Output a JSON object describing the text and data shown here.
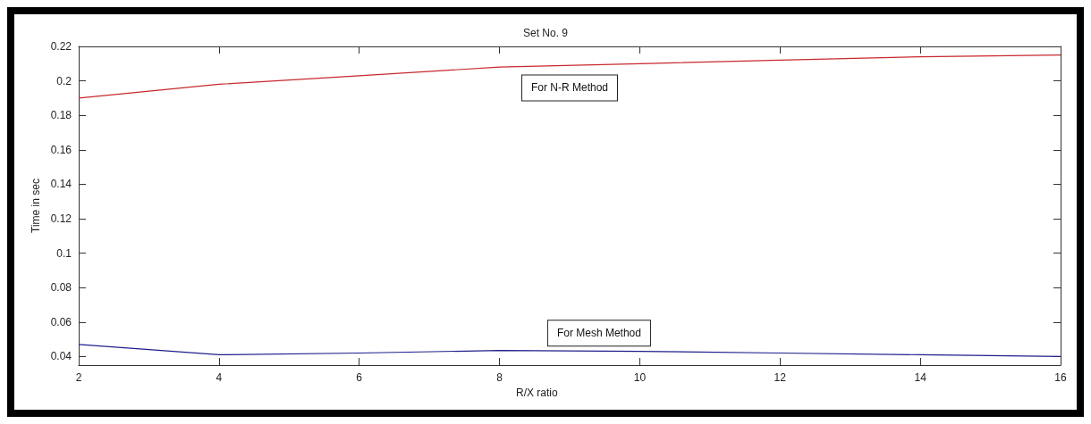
{
  "chart_data": {
    "type": "line",
    "title": "Set No. 9",
    "xlabel": "R/X ratio",
    "ylabel": "Time in sec",
    "annotations": [
      "For N-R Method",
      "For Mesh Method"
    ],
    "x": [
      2,
      4,
      6,
      8,
      10,
      12,
      14,
      16
    ],
    "series": [
      {
        "color": "#c8282d",
        "values": [
          0.19,
          0.198,
          0.203,
          0.208,
          0.21,
          0.212,
          0.214,
          0.215
        ]
      },
      {
        "color": "#1e1e8c",
        "values": [
          0.047,
          0.041,
          0.042,
          0.0435,
          0.043,
          0.042,
          0.041,
          0.04
        ]
      }
    ],
    "xlim": [
      2,
      16
    ],
    "xticks": [
      2,
      4,
      6,
      8,
      10,
      12,
      14,
      16
    ],
    "ylim": [
      0.035,
      0.22
    ],
    "yticks": [
      0.04,
      0.06,
      0.08,
      0.1,
      0.12,
      0.14,
      0.16,
      0.18,
      0.2,
      0.22
    ],
    "grid": false,
    "marker": "none",
    "line_style": "solid"
  }
}
